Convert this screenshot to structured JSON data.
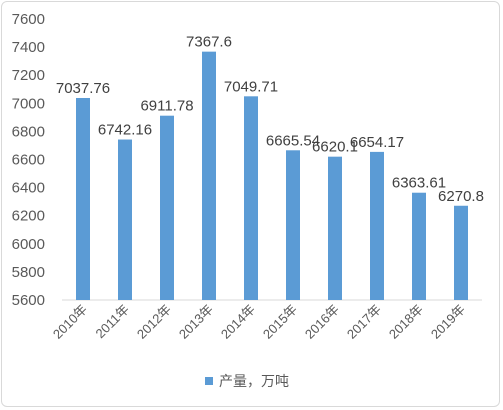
{
  "chart_data": {
    "type": "bar",
    "categories": [
      "2010年",
      "2011年",
      "2012年",
      "2013年",
      "2014年",
      "2015年",
      "2016年",
      "2017年",
      "2018年",
      "2019年"
    ],
    "series": [
      {
        "name": "产量，万吨",
        "values": [
          7037.76,
          6742.16,
          6911.78,
          7367.6,
          7049.71,
          6665.54,
          6620.1,
          6654.17,
          6363.61,
          6270.8
        ],
        "data_labels": [
          "7037.76",
          "6742.16",
          "6911.78",
          "7367.6",
          "7049.71",
          "6665.54",
          "6620.1",
          "6654.17",
          "6363.61",
          "6270.8"
        ],
        "color": "#5b9bd5"
      }
    ],
    "ylim": [
      5600,
      7600
    ],
    "yticks": [
      "5600",
      "5800",
      "6000",
      "6200",
      "6400",
      "6600",
      "6800",
      "7000",
      "7200",
      "7400",
      "7600"
    ],
    "grid": false,
    "legend_position": "bottom"
  }
}
